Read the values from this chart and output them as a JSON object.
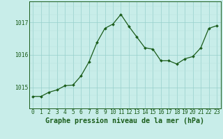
{
  "hours": [
    0,
    1,
    2,
    3,
    4,
    5,
    6,
    7,
    8,
    9,
    10,
    11,
    12,
    13,
    14,
    15,
    16,
    17,
    18,
    19,
    20,
    21,
    22,
    23
  ],
  "pressure": [
    1014.72,
    1014.72,
    1014.85,
    1014.92,
    1015.05,
    1015.07,
    1015.35,
    1015.78,
    1016.38,
    1016.82,
    1016.95,
    1017.25,
    1016.88,
    1016.55,
    1016.22,
    1016.18,
    1015.82,
    1015.82,
    1015.72,
    1015.88,
    1015.95,
    1016.22,
    1016.82,
    1016.9
  ],
  "bg_color": "#c8ede9",
  "line_color": "#1a5c1a",
  "marker_color": "#1a5c1a",
  "grid_major_color": "#96d0cb",
  "grid_minor_color": "#b8e0dc",
  "axis_label_color": "#1a5c1a",
  "ylabel_ticks": [
    1015,
    1016,
    1017
  ],
  "xlabel": "Graphe pression niveau de la mer (hPa)",
  "ylim_min": 1014.35,
  "ylim_max": 1017.65,
  "tick_fontsize": 5.8,
  "label_fontsize": 7.2,
  "figwidth": 3.2,
  "figheight": 2.0,
  "dpi": 100
}
